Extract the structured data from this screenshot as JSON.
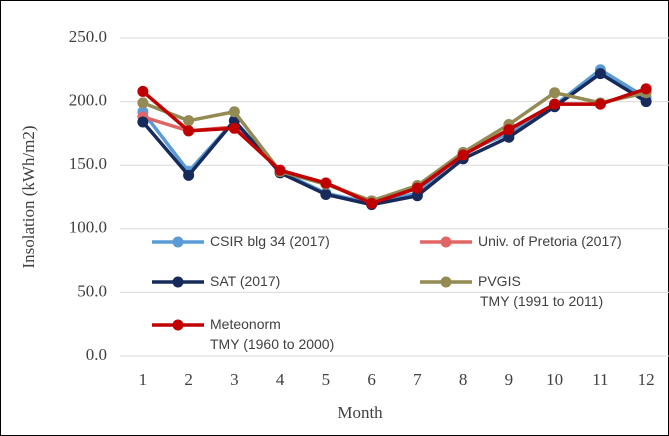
{
  "chart_data": {
    "type": "line",
    "x_label": "Month",
    "y_label": "Insolation (kWh/m2)",
    "categories": [
      "1",
      "2",
      "3",
      "4",
      "5",
      "6",
      "7",
      "8",
      "9",
      "10",
      "11",
      "12"
    ],
    "series": [
      {
        "name": "CSIR blg 34 (2017)",
        "color": "#5b9bd5",
        "values": [
          192,
          145,
          185,
          145,
          128,
          120,
          128,
          160,
          175,
          197,
          225,
          203
        ]
      },
      {
        "name": "Univ. of Pretoria (2017)",
        "color": "#e06666",
        "values": [
          188,
          177,
          180,
          146,
          136,
          121,
          132,
          158,
          178,
          198,
          198,
          210
        ]
      },
      {
        "name": "SAT (2017)",
        "color": "#172a5c",
        "values": [
          184,
          142,
          185,
          144,
          127,
          119,
          126,
          155,
          172,
          196,
          222,
          200
        ]
      },
      {
        "name": "PVGIS\nTMY (1991 to 2011)",
        "color": "#948a54",
        "values": [
          199,
          185,
          192,
          145,
          135,
          122,
          134,
          160,
          182,
          207,
          199,
          207
        ]
      },
      {
        "name": "Meteonorm\nTMY (1960 to 2000)",
        "color": "#c00000",
        "values": [
          208,
          177,
          179,
          146,
          136,
          120,
          132,
          158,
          178,
          198,
          198,
          210
        ]
      }
    ],
    "ylim": [
      0,
      250
    ],
    "yticks": [
      {
        "value": 0,
        "label": "0.0"
      },
      {
        "value": 50,
        "label": "50.0"
      },
      {
        "value": 100,
        "label": "100.0"
      },
      {
        "value": 150,
        "label": "150.0"
      },
      {
        "value": 200,
        "label": "200.0"
      },
      {
        "value": 250,
        "label": "250.0"
      }
    ],
    "grid": true
  }
}
